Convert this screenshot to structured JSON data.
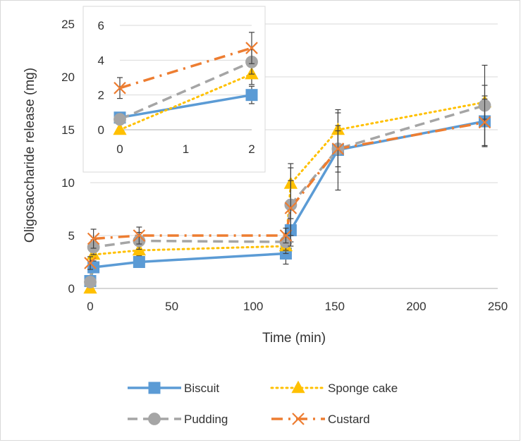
{
  "chart_data": [
    {
      "type": "line",
      "xlabel": "Time (min)",
      "ylabel": "Oligosaccharide release (mg)",
      "xlim": [
        0,
        250
      ],
      "ylim": [
        0,
        25
      ],
      "x_ticks": [
        "0",
        "50",
        "100",
        "150",
        "200",
        "250"
      ],
      "y_ticks": [
        "0",
        "5",
        "10",
        "15",
        "20",
        "25"
      ],
      "grid": "horizontal",
      "legend_position": "bottom",
      "series": [
        {
          "name": "Biscuit",
          "color": "#5B9BD5",
          "line_style": "solid",
          "marker": "square",
          "x": [
            0,
            2,
            30,
            120,
            123,
            152,
            242
          ],
          "y": [
            0.7,
            2.0,
            2.5,
            3.3,
            5.5,
            13.1,
            15.8
          ],
          "error": [
            0.3,
            0.5,
            0.4,
            1.0,
            1.1,
            3.8,
            2.4
          ]
        },
        {
          "name": "Sponge cake",
          "color": "#FFC000",
          "line_style": "dotted",
          "marker": "triangle",
          "x": [
            0,
            2,
            30,
            120,
            123,
            152,
            242
          ],
          "y": [
            0.0,
            3.2,
            3.6,
            4.0,
            9.9,
            15.0,
            17.6
          ],
          "error": [
            0.3,
            0.6,
            0.5,
            0.7,
            1.5,
            1.6,
            1.6
          ]
        },
        {
          "name": "Pudding",
          "color": "#A5A5A5",
          "line_style": "dashed",
          "marker": "circle",
          "x": [
            0,
            2,
            30,
            120,
            123,
            152,
            242
          ],
          "y": [
            0.6,
            3.9,
            4.5,
            4.4,
            7.9,
            13.2,
            17.3
          ],
          "error": [
            0.3,
            0.7,
            0.8,
            0.8,
            3.9,
            1.7,
            3.8
          ]
        },
        {
          "name": "Custard",
          "color": "#ED7D31",
          "line_style": "dash-dot",
          "marker": "x",
          "x": [
            0,
            2,
            30,
            120,
            123,
            152,
            242
          ],
          "y": [
            2.4,
            4.7,
            5.0,
            5.0,
            7.6,
            13.2,
            15.7
          ],
          "error": [
            0.6,
            0.9,
            0.8,
            0.7,
            2.6,
            2.2,
            2.2
          ]
        }
      ]
    },
    {
      "type": "line",
      "title": "",
      "xlim": [
        0,
        2
      ],
      "ylim": [
        0,
        6
      ],
      "x_ticks": [
        "0",
        "1",
        "2"
      ],
      "y_ticks": [
        "0",
        "2",
        "4",
        "6"
      ],
      "grid": "horizontal",
      "series": [
        {
          "name": "Biscuit",
          "x": [
            0,
            2
          ],
          "y": [
            0.7,
            2.0
          ],
          "error": [
            0.3,
            0.5
          ]
        },
        {
          "name": "Sponge cake",
          "x": [
            0,
            2
          ],
          "y": [
            0.0,
            3.2
          ],
          "error": [
            0.3,
            0.6
          ]
        },
        {
          "name": "Pudding",
          "x": [
            0,
            2
          ],
          "y": [
            0.6,
            3.9
          ],
          "error": [
            0.3,
            0.7
          ]
        },
        {
          "name": "Custard",
          "x": [
            0,
            2
          ],
          "y": [
            2.4,
            4.7
          ],
          "error": [
            0.6,
            0.9
          ]
        }
      ]
    }
  ],
  "legend": {
    "items": [
      {
        "label": "Biscuit",
        "series": 0
      },
      {
        "label": "Sponge cake",
        "series": 1
      },
      {
        "label": "Pudding",
        "series": 2
      },
      {
        "label": "Custard",
        "series": 3
      }
    ]
  },
  "colors": {
    "grid": "#D9D9D9",
    "axis": "#BFBFBF",
    "frame": "#D9D9D9",
    "error_bar": "#404040"
  }
}
